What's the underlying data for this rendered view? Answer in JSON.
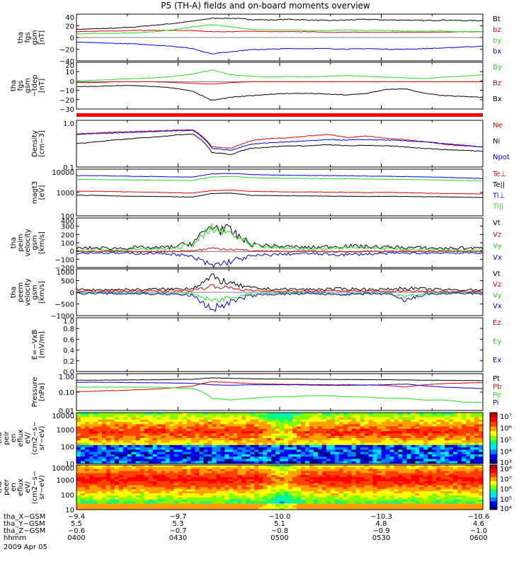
{
  "title": "P5 (TH-A) fields and on-board moments overview",
  "colors": {
    "black": "#000000",
    "red": "#e00000",
    "green": "#22dd22",
    "blue": "#0000dd"
  },
  "chart_data": [
    {
      "type": "line",
      "ylabel": [
        "tha",
        "fgs",
        "gsm",
        "[nT]"
      ],
      "yticks": [
        "40",
        "20",
        "0",
        "−20",
        "−40"
      ],
      "ylim": [
        -40,
        40
      ],
      "series": [
        {
          "name": "Bt",
          "color": "#000000",
          "values": [
            14,
            15,
            16,
            18,
            21,
            24,
            28,
            33,
            33,
            31,
            30,
            31,
            30,
            29,
            30,
            31,
            30,
            30,
            29,
            30,
            29,
            29
          ]
        },
        {
          "name": "bz",
          "color": "#e00000",
          "values": [
            10,
            11,
            11,
            12,
            12,
            12,
            12,
            10,
            10,
            11,
            10,
            10,
            10,
            9,
            9,
            9,
            9,
            9,
            9,
            9,
            10,
            10
          ]
        },
        {
          "name": "by",
          "color": "#22dd22",
          "values": [
            6,
            7,
            7,
            8,
            10,
            13,
            18,
            22,
            18,
            14,
            13,
            13,
            12,
            12,
            13,
            12,
            12,
            11,
            11,
            11,
            10,
            10
          ]
        },
        {
          "name": "bx",
          "color": "#0000dd",
          "values": [
            -8,
            -9,
            -10,
            -11,
            -13,
            -15,
            -19,
            -28,
            -24,
            -21,
            -20,
            -19,
            -19,
            -19,
            -20,
            -19,
            -20,
            -20,
            -19,
            -18,
            -16,
            -15
          ]
        }
      ]
    },
    {
      "type": "line",
      "ylabel": [
        "tha",
        "fgs",
        "gsm",
        "−tdep",
        "[nT]"
      ],
      "yticks": [
        "20",
        "10",
        "0",
        "−10",
        "−20",
        "−30"
      ],
      "ylim": [
        -35,
        25
      ],
      "series": [
        {
          "name": "By",
          "color": "#22dd22",
          "values": [
            1,
            2,
            3,
            4,
            5,
            7,
            10,
            15,
            9,
            7,
            6,
            7,
            6,
            7,
            8,
            7,
            6,
            5,
            4,
            6,
            7,
            9
          ]
        },
        {
          "name": "Bz",
          "color": "#e00000",
          "values": [
            -1,
            -1,
            0,
            0,
            0,
            -1,
            -2,
            -3,
            -1,
            0,
            0,
            0,
            0,
            0,
            0,
            0,
            0,
            0,
            0,
            0,
            0,
            0
          ]
        },
        {
          "name": "Bx",
          "color": "#000000",
          "values": [
            -6,
            -6,
            -5,
            -5,
            -6,
            -8,
            -12,
            -24,
            -20,
            -18,
            -16,
            -15,
            -15,
            -16,
            -17,
            -15,
            -10,
            -9,
            -15,
            -18,
            -19,
            -20
          ]
        }
      ]
    },
    {
      "type": "line",
      "ylabel": [
        "Density",
        "[cm−3]"
      ],
      "yticks": [
        "1.0",
        "0.1"
      ],
      "log": true,
      "ylim": [
        0.1,
        1.3
      ],
      "series": [
        {
          "name": "Ne",
          "color": "#e00000",
          "values": [
            0.62,
            0.65,
            0.68,
            0.7,
            0.72,
            0.75,
            0.78,
            0.3,
            0.28,
            0.42,
            0.48,
            0.5,
            0.55,
            0.6,
            0.5,
            0.55,
            0.48,
            0.45,
            0.4,
            0.35,
            0.32,
            0.3
          ]
        },
        {
          "name": "Ni",
          "color": "#000000",
          "values": [
            0.36,
            0.4,
            0.44,
            0.48,
            0.52,
            0.57,
            0.62,
            0.22,
            0.2,
            0.28,
            0.3,
            0.32,
            0.32,
            0.34,
            0.32,
            0.33,
            0.32,
            0.3,
            0.28,
            0.26,
            0.25,
            0.24
          ]
        },
        {
          "name": "Npot",
          "color": "#0000dd",
          "values": [
            0.6,
            0.63,
            0.65,
            0.68,
            0.7,
            0.73,
            0.75,
            0.28,
            0.25,
            0.35,
            0.38,
            0.4,
            0.42,
            0.45,
            0.44,
            0.45,
            0.44,
            0.42,
            0.4,
            0.36,
            0.33,
            0.3
          ]
        }
      ]
    },
    {
      "type": "line",
      "ylabel": [
        "magt3",
        "[eV]"
      ],
      "yticks": [
        "10000",
        "1000",
        "100"
      ],
      "log": true,
      "ylim": [
        100,
        15000
      ],
      "series": [
        {
          "name": "Te⊥",
          "color": "#e00000",
          "values": [
            1400,
            1400,
            1350,
            1300,
            1250,
            1200,
            1150,
            1500,
            1600,
            1400,
            1350,
            1300,
            1300,
            1280,
            1250,
            1200,
            1250,
            1200,
            1150,
            1100,
            1080,
            1050
          ]
        },
        {
          "name": "Te||",
          "color": "#000000",
          "values": [
            900,
            900,
            850,
            820,
            800,
            780,
            750,
            1100,
            1150,
            900,
            880,
            860,
            850,
            830,
            820,
            800,
            820,
            800,
            780,
            760,
            740,
            720
          ]
        },
        {
          "name": "Ti⊥",
          "color": "#0000dd",
          "values": [
            7500,
            7400,
            7200,
            7000,
            6800,
            6600,
            6400,
            9000,
            9500,
            8500,
            8000,
            7800,
            7600,
            7500,
            7400,
            7200,
            7000,
            6800,
            6500,
            6200,
            5800,
            5500
          ]
        },
        {
          "name": "Ti||",
          "color": "#22dd22",
          "values": [
            5000,
            4900,
            4800,
            4700,
            4600,
            4500,
            4400,
            6500,
            7000,
            6000,
            5800,
            5600,
            5500,
            5400,
            5300,
            5200,
            5100,
            5000,
            4800,
            4600,
            4400,
            4200
          ]
        }
      ]
    },
    {
      "type": "line",
      "ylabel": [
        "tha",
        "peim",
        "velocity",
        "gsm",
        "[km/s]"
      ],
      "yticks": [
        "400",
        "300",
        "200",
        "100",
        "0",
        "−100",
        "−200"
      ],
      "ylim": [
        -200,
        420
      ],
      "series": [
        {
          "name": "Vt",
          "color": "#000000",
          "values": [
            40,
            45,
            40,
            50,
            45,
            60,
            110,
            320,
            250,
            90,
            70,
            60,
            50,
            60,
            70,
            60,
            55,
            50,
            45,
            40,
            45,
            40
          ]
        },
        {
          "name": "Vz",
          "color": "#e00000",
          "values": [
            5,
            0,
            5,
            -5,
            0,
            5,
            10,
            40,
            30,
            10,
            5,
            0,
            5,
            0,
            -5,
            5,
            0,
            5,
            0,
            5,
            0,
            5
          ]
        },
        {
          "name": "Vy",
          "color": "#22dd22",
          "values": [
            20,
            25,
            20,
            30,
            25,
            40,
            90,
            280,
            220,
            80,
            50,
            40,
            30,
            40,
            60,
            50,
            40,
            30,
            25,
            20,
            25,
            20
          ]
        },
        {
          "name": "Vx",
          "color": "#0000dd",
          "values": [
            -20,
            -15,
            -20,
            -25,
            -20,
            -30,
            -70,
            -180,
            -120,
            -60,
            -40,
            -30,
            -25,
            -35,
            -40,
            -30,
            -25,
            -20,
            -20,
            -15,
            -20,
            -15
          ]
        }
      ]
    },
    {
      "type": "line",
      "ylabel": [
        "tha",
        "peem",
        "velocity",
        "gsm",
        "[km/s]"
      ],
      "yticks": [
        "1000",
        "500",
        "0",
        "−500",
        "−1000"
      ],
      "ylim": [
        -1100,
        1100
      ],
      "series": [
        {
          "name": "Vt",
          "color": "#000000",
          "values": [
            120,
            110,
            130,
            120,
            140,
            150,
            200,
            700,
            400,
            200,
            150,
            140,
            130,
            150,
            160,
            140,
            130,
            200,
            150,
            120,
            110,
            120
          ]
        },
        {
          "name": "Vz",
          "color": "#e00000",
          "values": [
            50,
            40,
            60,
            50,
            60,
            70,
            90,
            300,
            200,
            80,
            60,
            50,
            40,
            60,
            70,
            50,
            40,
            60,
            50,
            40,
            30,
            40
          ]
        },
        {
          "name": "Vy",
          "color": "#22dd22",
          "values": [
            -30,
            -20,
            -40,
            -30,
            -50,
            -60,
            -90,
            -400,
            -250,
            -100,
            -60,
            -50,
            -40,
            -60,
            -70,
            -50,
            -40,
            -200,
            -60,
            -40,
            -30,
            -40
          ]
        },
        {
          "name": "Vx",
          "color": "#0000dd",
          "values": [
            -60,
            -50,
            -70,
            -60,
            -80,
            -90,
            -150,
            -800,
            -450,
            -160,
            -90,
            -80,
            -70,
            -90,
            -100,
            -80,
            -70,
            -400,
            -90,
            -70,
            -60,
            -70
          ]
        }
      ]
    },
    {
      "type": "line",
      "ylabel": [
        "E=−VxB",
        "[mV/m]"
      ],
      "yticks": [
        "1.0",
        "0.8",
        "0.6",
        "0.4",
        "0.2",
        "0.0"
      ],
      "ylim": [
        0,
        1
      ],
      "series": [
        {
          "name": "Ez",
          "color": "#e00000",
          "values": []
        },
        {
          "name": "Ey",
          "color": "#22dd22",
          "values": []
        },
        {
          "name": "Ex",
          "color": "#0000dd",
          "values": []
        }
      ]
    },
    {
      "type": "line",
      "ylabel": [
        "Pressure",
        "[nPa]"
      ],
      "yticks": [
        "1.00",
        "0.10",
        "0.01"
      ],
      "log": true,
      "ylim": [
        0.01,
        1.3
      ],
      "series": [
        {
          "name": "Pt",
          "color": "#000000",
          "values": [
            0.55,
            0.55,
            0.56,
            0.57,
            0.58,
            0.6,
            0.62,
            0.75,
            0.7,
            0.66,
            0.64,
            0.63,
            0.62,
            0.61,
            0.6,
            0.59,
            0.58,
            0.57,
            0.55,
            0.54,
            0.53,
            0.52
          ]
        },
        {
          "name": "Pb",
          "color": "#e00000",
          "values": [
            0.12,
            0.13,
            0.14,
            0.15,
            0.17,
            0.2,
            0.25,
            0.45,
            0.4,
            0.35,
            0.33,
            0.32,
            0.31,
            0.3,
            0.3,
            0.29,
            0.27,
            0.22,
            0.3,
            0.35,
            0.38,
            0.4
          ]
        },
        {
          "name": "Pe",
          "color": "#22dd22",
          "values": [
            0.22,
            0.22,
            0.22,
            0.22,
            0.22,
            0.2,
            0.18,
            0.05,
            0.04,
            0.05,
            0.06,
            0.06,
            0.07,
            0.07,
            0.06,
            0.06,
            0.05,
            0.05,
            0.04,
            0.04,
            0.03,
            0.03
          ]
        },
        {
          "name": "Pi",
          "color": "#0000dd",
          "values": [
            0.42,
            0.42,
            0.41,
            0.4,
            0.39,
            0.38,
            0.36,
            0.3,
            0.28,
            0.3,
            0.3,
            0.3,
            0.29,
            0.28,
            0.28,
            0.29,
            0.3,
            0.33,
            0.26,
            0.22,
            0.2,
            0.18
          ]
        }
      ]
    },
    {
      "type": "heatmap",
      "ylabel": [
        "tha",
        "peir",
        "en",
        "eflux",
        "eV/",
        "(cm2−s−",
        "sr−eV)"
      ],
      "yticks": [
        "10000",
        "1000",
        "100",
        "10"
      ],
      "colorbar_ticks": [
        "10⁷",
        "10⁶",
        "10⁵",
        "10⁴",
        "10³"
      ],
      "colorbar_range": [
        1000,
        10000000
      ]
    },
    {
      "type": "heatmap",
      "ylabel": [
        "tha",
        "peer",
        "en",
        "eflux",
        "eV/",
        "(cm2−s−",
        "sr−eV)"
      ],
      "yticks": [
        "10000",
        "1000",
        "100",
        "10"
      ],
      "colorbar_ticks": [
        "10⁸",
        "10⁷",
        "10⁶",
        "10⁵",
        "10⁴"
      ],
      "colorbar_range": [
        3000,
        300000000
      ]
    }
  ],
  "xaxis": {
    "rows": [
      {
        "label": "tha_X−GSM",
        "values": [
          "−9.4",
          "−9.7",
          "−10.0",
          "−10.3",
          "−10.6"
        ]
      },
      {
        "label": "tha_Y−GSM",
        "values": [
          "5.5",
          "5.3",
          "5.1",
          "4.8",
          "4.6"
        ]
      },
      {
        "label": "tha_Z−GSM",
        "values": [
          "−0.6",
          "−0.7",
          "−0.8",
          "−0.9",
          "−1.0"
        ]
      },
      {
        "label": "hhmm",
        "values": [
          "0400",
          "0430",
          "0500",
          "0530",
          "0600"
        ]
      }
    ],
    "date": "2009 Apr 05"
  }
}
